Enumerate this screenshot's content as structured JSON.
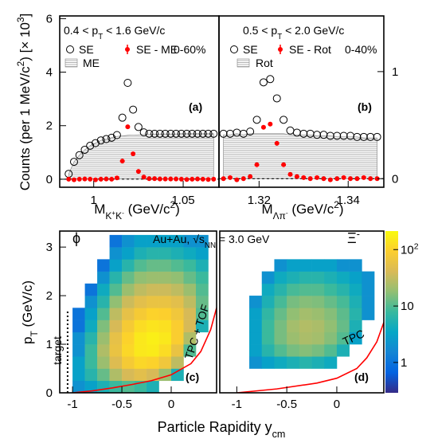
{
  "chart_data": [
    {
      "type": "mass-spectrum",
      "kinematics": "0.4 < p_{T} < 1.6 GeV/c",
      "centrality": "0-60%",
      "panel_label": "(a)",
      "xlabel": "M_{K^{+}K^{-}} (GeV/c^{2})",
      "ylabel": "Counts (per 1 MeV/c^{2}) [× 10^{3}]",
      "xlim": [
        0.981,
        1.07
      ],
      "ylim": [
        -0.3,
        6.1
      ],
      "xticks": [
        1,
        1.05
      ],
      "yticks": [
        0,
        2,
        4,
        6
      ],
      "x": [
        0.986,
        0.989,
        0.992,
        0.995,
        0.998,
        1.001,
        1.004,
        1.007,
        1.01,
        1.013,
        1.016,
        1.019,
        1.022,
        1.025,
        1.028,
        1.031,
        1.034,
        1.037,
        1.04,
        1.043,
        1.046,
        1.049,
        1.052,
        1.055,
        1.058,
        1.061,
        1.064,
        1.067
      ],
      "series": [
        {
          "name": "SE",
          "color": "#000000",
          "marker": "open-circle",
          "values": [
            0.2,
            0.65,
            0.9,
            1.1,
            1.25,
            1.35,
            1.45,
            1.5,
            1.55,
            1.65,
            2.3,
            3.6,
            2.6,
            1.95,
            1.75,
            1.7,
            1.7,
            1.7,
            1.7,
            1.7,
            1.7,
            1.7,
            1.7,
            1.7,
            1.7,
            1.7,
            1.7,
            1.7
          ]
        },
        {
          "name": "SE - ME",
          "color": "#ff0000",
          "marker": "filled-circle",
          "values": [
            0,
            -0.02,
            0,
            0.01,
            0,
            -0.02,
            0,
            0.01,
            0,
            0.05,
            0.68,
            1.96,
            0.95,
            0.29,
            0.08,
            0.02,
            0.02,
            0.01,
            0.01,
            0.01,
            0.01,
            0,
            -0.01,
            0,
            0.01,
            0,
            -0.01,
            0
          ]
        },
        {
          "name": "ME",
          "color": "#808080",
          "marker": "hatched-area",
          "values": [
            0.2,
            0.65,
            0.9,
            1.1,
            1.25,
            1.35,
            1.45,
            1.5,
            1.55,
            1.6,
            1.62,
            1.64,
            1.65,
            1.66,
            1.67,
            1.68,
            1.68,
            1.69,
            1.69,
            1.69,
            1.69,
            1.7,
            1.7,
            1.7,
            1.7,
            1.7,
            1.7,
            1.7
          ]
        }
      ]
    },
    {
      "type": "mass-spectrum",
      "kinematics": "0.5 < p_{T} < 2.0 GeV/c",
      "centrality": "0-40%",
      "panel_label": "(b)",
      "xlabel": "M_{Λπ^{-}} (GeV/c^{2})",
      "xlim": [
        1.311,
        1.348
      ],
      "y2lim": [
        -0.08,
        1.52
      ],
      "xticks": [
        1.32,
        1.34
      ],
      "y2ticks": [
        0,
        1
      ],
      "x": [
        1.312,
        1.3135,
        1.315,
        1.3165,
        1.318,
        1.3195,
        1.321,
        1.3225,
        1.324,
        1.3255,
        1.327,
        1.3285,
        1.33,
        1.3315,
        1.333,
        1.3345,
        1.336,
        1.3375,
        1.339,
        1.3405,
        1.342,
        1.3435,
        1.345,
        1.3465
      ],
      "series": [
        {
          "name": "SE",
          "color": "#000000",
          "marker": "open-circle",
          "axis": "y2",
          "values": [
            0.42,
            0.42,
            0.43,
            0.42,
            0.44,
            0.55,
            0.9,
            0.93,
            0.75,
            0.55,
            0.45,
            0.43,
            0.42,
            0.42,
            0.41,
            0.41,
            0.4,
            0.4,
            0.4,
            0.4,
            0.39,
            0.39,
            0.39,
            0.39
          ]
        },
        {
          "name": "SE - Rot",
          "color": "#ff0000",
          "marker": "filled-circle",
          "axis": "y2",
          "values": [
            0,
            0.01,
            -0.01,
            0,
            0.02,
            0.13,
            0.48,
            0.51,
            0.33,
            0.13,
            0.04,
            0.02,
            0.01,
            0,
            0.01,
            0,
            -0.01,
            0,
            0.01,
            0,
            0,
            0.01,
            0,
            0
          ]
        },
        {
          "name": "Rot",
          "color": "#808080",
          "marker": "hatched-area",
          "axis": "y2",
          "values": [
            0.41,
            0.41,
            0.42,
            0.41,
            0.42,
            0.42,
            0.42,
            0.42,
            0.42,
            0.42,
            0.41,
            0.41,
            0.41,
            0.41,
            0.4,
            0.4,
            0.4,
            0.39,
            0.39,
            0.39,
            0.39,
            0.38,
            0.38,
            0.38
          ]
        }
      ]
    },
    {
      "type": "heatmap",
      "particle": "ϕ",
      "system": "Au+Au, √s_{NN} = 3.0 GeV",
      "detector": "TPC + TOF",
      "panel_label": "(c)",
      "ylabel": "p_{T} (GeV/c)",
      "xlabel": "Particle Rapidity y_{cm}",
      "xlim": [
        -1.13,
        0.46
      ],
      "ylim": [
        0,
        3.33
      ],
      "xticks": [
        -1,
        -0.5,
        0
      ],
      "yticks": [
        0,
        1,
        2,
        3
      ],
      "log_z": true,
      "zlim": [
        0.29,
        213
      ],
      "colorscale": [
        "#352a87",
        "#0363e1",
        "#1485d4",
        "#06a7c6",
        "#38b99e",
        "#92bf73",
        "#d9ba56",
        "#fcce2e",
        "#f9fb0e"
      ],
      "x_edges": [
        -1,
        -0.875,
        -0.75,
        -0.625,
        -0.5,
        -0.375,
        -0.25,
        -0.125,
        0,
        0.125,
        0.25,
        0.375
      ],
      "y_edges": [
        0,
        0.25,
        0.5,
        0.75,
        1,
        1.25,
        1.5,
        1.75,
        2,
        2.25,
        2.5,
        2.75,
        3,
        3.25
      ],
      "z": [
        [
          2,
          3,
          5,
          8,
          10,
          8,
          5,
          null,
          null,
          null,
          null
        ],
        [
          3,
          6,
          12,
          25,
          40,
          50,
          40,
          20,
          5,
          null,
          null
        ],
        [
          3,
          8,
          20,
          45,
          80,
          110,
          100,
          70,
          30,
          null,
          null
        ],
        [
          2,
          8,
          25,
          60,
          110,
          150,
          160,
          120,
          60,
          10,
          null
        ],
        [
          2,
          6,
          20,
          55,
          100,
          150,
          170,
          150,
          90,
          25,
          null
        ],
        [
          1,
          4,
          15,
          40,
          80,
          120,
          140,
          130,
          90,
          40,
          5
        ],
        [
          1,
          3,
          10,
          30,
          55,
          80,
          100,
          95,
          70,
          40,
          10
        ],
        [
          null,
          2,
          6,
          18,
          35,
          50,
          60,
          60,
          50,
          30,
          12
        ],
        [
          null,
          1,
          4,
          10,
          20,
          30,
          35,
          35,
          30,
          20,
          10
        ],
        [
          null,
          null,
          2,
          6,
          12,
          18,
          20,
          20,
          18,
          12,
          8
        ],
        [
          null,
          null,
          1,
          3,
          6,
          10,
          12,
          12,
          10,
          8,
          5
        ],
        [
          null,
          null,
          null,
          2,
          3,
          5,
          6,
          6,
          5,
          4,
          3
        ],
        [
          null,
          null,
          null,
          1,
          2,
          3,
          3,
          3,
          3,
          2,
          2
        ]
      ],
      "acceptance": {
        "color": "#ff0000",
        "x": [
          -1.0,
          -0.8,
          -0.6,
          -0.4,
          -0.2,
          0,
          0.2,
          0.3,
          0.4,
          0.46
        ],
        "y": [
          0,
          0.04,
          0.1,
          0.17,
          0.25,
          0.37,
          0.6,
          0.85,
          1.3,
          1.75
        ]
      },
      "target": {
        "x": -1.05,
        "label": "target"
      }
    },
    {
      "type": "heatmap",
      "particle": "Ξ^{-}",
      "detector": "TPC",
      "panel_label": "(d)",
      "xlim": [
        -1.17,
        0.47
      ],
      "ylim": [
        0,
        3.33
      ],
      "xticks": [
        -1,
        -0.5,
        0
      ],
      "log_z": true,
      "zlim": [
        0.29,
        213
      ],
      "colorscale": [
        "#352a87",
        "#0363e1",
        "#1485d4",
        "#06a7c6",
        "#38b99e",
        "#92bf73",
        "#d9ba56",
        "#fcce2e",
        "#f9fb0e"
      ],
      "colorbar_ticks": [
        1,
        10,
        {
          "value": 100,
          "label": "10^{2}"
        }
      ],
      "x_edges": [
        -1,
        -0.875,
        -0.75,
        -0.625,
        -0.5,
        -0.375,
        -0.25,
        -0.125,
        0,
        0.125,
        0.25,
        0.375
      ],
      "y_edges": [
        0,
        0.25,
        0.5,
        0.75,
        1,
        1.25,
        1.5,
        1.75,
        2,
        2.25,
        2.5,
        2.75,
        3,
        3.25
      ],
      "z": [
        [
          null,
          null,
          null,
          null,
          null,
          null,
          null,
          null,
          null,
          null,
          null
        ],
        [
          null,
          null,
          null,
          null,
          null,
          null,
          null,
          null,
          null,
          null,
          null
        ],
        [
          null,
          2,
          3,
          4,
          5,
          6,
          5,
          4,
          null,
          null,
          null
        ],
        [
          null,
          3,
          6,
          10,
          14,
          16,
          14,
          10,
          5,
          null,
          null
        ],
        [
          null,
          3,
          8,
          14,
          20,
          24,
          22,
          16,
          10,
          3,
          null
        ],
        [
          null,
          3,
          8,
          14,
          22,
          26,
          24,
          18,
          12,
          5,
          null
        ],
        [
          null,
          3,
          7,
          12,
          18,
          22,
          20,
          16,
          11,
          6,
          2
        ],
        [
          null,
          2,
          5,
          9,
          14,
          16,
          15,
          12,
          9,
          5,
          2
        ],
        [
          null,
          null,
          4,
          6,
          9,
          10,
          10,
          8,
          6,
          4,
          2
        ],
        [
          null,
          null,
          2,
          4,
          5,
          6,
          6,
          5,
          4,
          3,
          2
        ],
        [
          null,
          null,
          null,
          2,
          3,
          3,
          3,
          3,
          2,
          2,
          null
        ],
        [
          null,
          null,
          null,
          null,
          null,
          null,
          null,
          null,
          null,
          null,
          null
        ],
        [
          null,
          null,
          null,
          null,
          null,
          null,
          null,
          null,
          null,
          null,
          null
        ]
      ],
      "acceptance": {
        "color": "#ff0000",
        "x": [
          -1.0,
          -0.6,
          -0.2,
          0,
          0.2,
          0.3,
          0.4,
          0.47
        ],
        "y": [
          0,
          0.08,
          0.2,
          0.3,
          0.5,
          0.72,
          1.05,
          1.45
        ]
      }
    }
  ]
}
